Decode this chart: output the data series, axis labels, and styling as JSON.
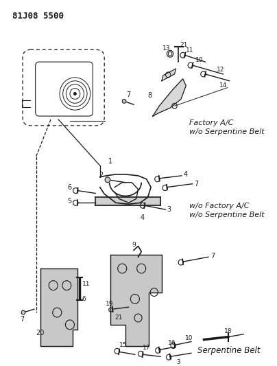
{
  "title": "81J08 5500",
  "bg_color": "#ffffff",
  "line_color": "#1a1a1a",
  "labels": {
    "factory_ac": [
      "Factory A/C",
      "w/o Serpentine Belt"
    ],
    "wo_factory_ac": [
      "w/o Factory A/C",
      "w/o Serpentine Belt"
    ],
    "serpentine": "Serpentine Belt"
  },
  "figsize": [
    4.04,
    5.33
  ],
  "dpi": 100
}
